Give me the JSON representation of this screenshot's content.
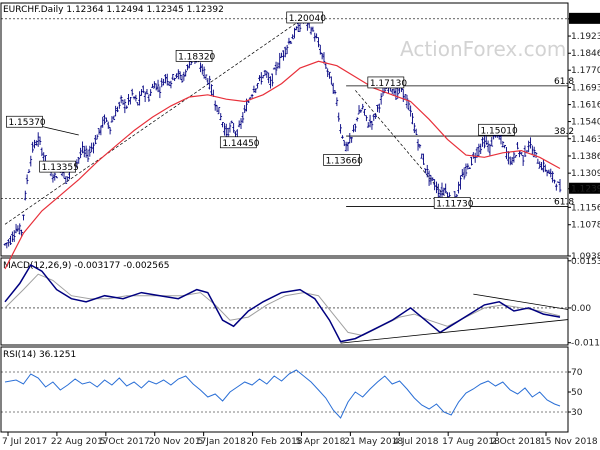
{
  "chart_data": [
    {
      "type": "candlestick",
      "header": "EURCHF.Daily  1.12364 1.12494 1.12345 1.12392",
      "watermark": "ActionForex.com",
      "y_ticks": [
        "1.20000",
        "1.19230",
        "1.18460",
        "1.17700",
        "1.16930",
        "1.16160",
        "1.15400",
        "1.14630",
        "1.13860",
        "1.13090",
        "1.12392",
        "1.11560",
        "1.10780",
        "1.09380"
      ],
      "ylim": [
        1.0938,
        1.2071
      ],
      "last_price": "1.12392",
      "x_ticks": [
        "7 Jul 2017",
        "22 Aug 2017",
        "5 Oct 2017",
        "20 Nov 2017",
        "5 Jan 2018",
        "20 Feb 2018",
        "5 Apr 2018",
        "21 May 2018",
        "4 Jul 2018",
        "17 Aug 2018",
        "2 Oct 2018",
        "15 Nov 2018"
      ],
      "price_path": [
        [
          0,
          1.099
        ],
        [
          3,
          1.101
        ],
        [
          6,
          1.106
        ],
        [
          9,
          1.105
        ],
        [
          12,
          1.128
        ],
        [
          15,
          1.142
        ],
        [
          18,
          1.146
        ],
        [
          21,
          1.139
        ],
        [
          24,
          1.133
        ],
        [
          27,
          1.129
        ],
        [
          30,
          1.134
        ],
        [
          33,
          1.128
        ],
        [
          36,
          1.132
        ],
        [
          39,
          1.136
        ],
        [
          42,
          1.141
        ],
        [
          45,
          1.139
        ],
        [
          48,
          1.144
        ],
        [
          51,
          1.149
        ],
        [
          54,
          1.155
        ],
        [
          57,
          1.152
        ],
        [
          60,
          1.158
        ],
        [
          63,
          1.163
        ],
        [
          66,
          1.161
        ],
        [
          69,
          1.166
        ],
        [
          72,
          1.162
        ],
        [
          75,
          1.168
        ],
        [
          78,
          1.165
        ],
        [
          81,
          1.171
        ],
        [
          84,
          1.169
        ],
        [
          87,
          1.174
        ],
        [
          90,
          1.172
        ],
        [
          93,
          1.176
        ],
        [
          96,
          1.173
        ],
        [
          99,
          1.178
        ],
        [
          102,
          1.183
        ],
        [
          105,
          1.18
        ],
        [
          108,
          1.176
        ],
        [
          111,
          1.171
        ],
        [
          114,
          1.163
        ],
        [
          117,
          1.156
        ],
        [
          120,
          1.149
        ],
        [
          123,
          1.152
        ],
        [
          126,
          1.148
        ],
        [
          129,
          1.156
        ],
        [
          132,
          1.163
        ],
        [
          135,
          1.169
        ],
        [
          138,
          1.172
        ],
        [
          141,
          1.176
        ],
        [
          144,
          1.171
        ],
        [
          147,
          1.178
        ],
        [
          150,
          1.183
        ],
        [
          153,
          1.188
        ],
        [
          156,
          1.192
        ],
        [
          159,
          1.196
        ],
        [
          162,
          1.2
        ],
        [
          165,
          1.197
        ],
        [
          168,
          1.193
        ],
        [
          171,
          1.186
        ],
        [
          174,
          1.179
        ],
        [
          177,
          1.172
        ],
        [
          180,
          1.163
        ],
        [
          182,
          1.151
        ],
        [
          185,
          1.142
        ],
        [
          188,
          1.146
        ],
        [
          191,
          1.156
        ],
        [
          194,
          1.16
        ],
        [
          197,
          1.153
        ],
        [
          200,
          1.155
        ],
        [
          203,
          1.162
        ],
        [
          206,
          1.168
        ],
        [
          209,
          1.171
        ],
        [
          212,
          1.166
        ],
        [
          215,
          1.169
        ],
        [
          218,
          1.163
        ],
        [
          221,
          1.155
        ],
        [
          224,
          1.145
        ],
        [
          227,
          1.136
        ],
        [
          230,
          1.129
        ],
        [
          233,
          1.126
        ],
        [
          236,
          1.122
        ],
        [
          239,
          1.124
        ],
        [
          242,
          1.118
        ],
        [
          245,
          1.122
        ],
        [
          248,
          1.129
        ],
        [
          251,
          1.133
        ],
        [
          254,
          1.138
        ],
        [
          257,
          1.142
        ],
        [
          260,
          1.145
        ],
        [
          263,
          1.142
        ],
        [
          266,
          1.149
        ],
        [
          269,
          1.146
        ],
        [
          272,
          1.14
        ],
        [
          275,
          1.136
        ],
        [
          278,
          1.142
        ],
        [
          281,
          1.138
        ],
        [
          284,
          1.144
        ],
        [
          287,
          1.14
        ],
        [
          290,
          1.135
        ],
        [
          293,
          1.133
        ],
        [
          296,
          1.13
        ],
        [
          299,
          1.127
        ],
        [
          301,
          1.124
        ]
      ],
      "ema_path": [
        [
          0,
          1.088
        ],
        [
          10,
          1.104
        ],
        [
          20,
          1.114
        ],
        [
          30,
          1.121
        ],
        [
          40,
          1.128
        ],
        [
          50,
          1.136
        ],
        [
          60,
          1.143
        ],
        [
          70,
          1.15
        ],
        [
          80,
          1.156
        ],
        [
          90,
          1.161
        ],
        [
          100,
          1.165
        ],
        [
          110,
          1.166
        ],
        [
          120,
          1.164
        ],
        [
          130,
          1.163
        ],
        [
          140,
          1.166
        ],
        [
          150,
          1.171
        ],
        [
          160,
          1.178
        ],
        [
          170,
          1.181
        ],
        [
          180,
          1.179
        ],
        [
          190,
          1.174
        ],
        [
          200,
          1.169
        ],
        [
          210,
          1.166
        ],
        [
          220,
          1.163
        ],
        [
          230,
          1.155
        ],
        [
          240,
          1.146
        ],
        [
          250,
          1.139
        ],
        [
          260,
          1.138
        ],
        [
          270,
          1.14
        ],
        [
          280,
          1.141
        ],
        [
          290,
          1.138
        ],
        [
          301,
          1.133
        ]
      ],
      "annotations": [
        {
          "label": "1.15370",
          "x": 10,
          "y": 1.1537
        },
        {
          "label": "1.13355",
          "x": 28,
          "y": 1.1336
        },
        {
          "label": "1.18320",
          "x": 102,
          "y": 1.1832
        },
        {
          "label": "1.14450",
          "x": 126,
          "y": 1.1445
        },
        {
          "label": "1.20040",
          "x": 162,
          "y": 1.2004
        },
        {
          "label": "1.17130",
          "x": 206,
          "y": 1.1713
        },
        {
          "label": "1.13660",
          "x": 182,
          "y": 1.1366
        },
        {
          "label": "1.15010",
          "x": 266,
          "y": 1.1501
        },
        {
          "label": "1.11730",
          "x": 242,
          "y": 1.1173
        }
      ],
      "hlines": [
        {
          "label": "61.8",
          "y": 1.17
        },
        {
          "label": "38.2",
          "y": 1.1475
        },
        {
          "label": "61.8",
          "y": 1.116
        }
      ]
    },
    {
      "type": "line",
      "title": "MACD(12,26,9) -0.003177 -0.002565",
      "y_ticks": [
        "0.015385",
        "0.00",
        "-0.011352"
      ],
      "ylim": [
        -0.0121,
        0.0163
      ],
      "macd": [
        [
          0,
          0.002
        ],
        [
          8,
          0.008
        ],
        [
          14,
          0.014
        ],
        [
          20,
          0.012
        ],
        [
          28,
          0.006
        ],
        [
          36,
          0.003
        ],
        [
          44,
          0.002
        ],
        [
          54,
          0.004
        ],
        [
          64,
          0.003
        ],
        [
          74,
          0.005
        ],
        [
          84,
          0.004
        ],
        [
          94,
          0.003
        ],
        [
          104,
          0.006
        ],
        [
          110,
          0.005
        ],
        [
          118,
          -0.004
        ],
        [
          124,
          -0.006
        ],
        [
          132,
          -0.001
        ],
        [
          140,
          0.002
        ],
        [
          150,
          0.005
        ],
        [
          160,
          0.006
        ],
        [
          168,
          0.003
        ],
        [
          176,
          -0.004
        ],
        [
          182,
          -0.011
        ],
        [
          190,
          -0.01
        ],
        [
          200,
          -0.007
        ],
        [
          210,
          -0.004
        ],
        [
          220,
          0.0
        ],
        [
          228,
          -0.004
        ],
        [
          236,
          -0.008
        ],
        [
          244,
          -0.005
        ],
        [
          252,
          -0.002
        ],
        [
          260,
          0.001
        ],
        [
          268,
          0.002
        ],
        [
          276,
          -0.001
        ],
        [
          284,
          0.0
        ],
        [
          292,
          -0.002
        ],
        [
          301,
          -0.003
        ]
      ],
      "signal": [
        [
          0,
          0.0
        ],
        [
          10,
          0.006
        ],
        [
          18,
          0.011
        ],
        [
          26,
          0.009
        ],
        [
          36,
          0.004
        ],
        [
          46,
          0.003
        ],
        [
          56,
          0.003
        ],
        [
          66,
          0.004
        ],
        [
          76,
          0.004
        ],
        [
          86,
          0.004
        ],
        [
          96,
          0.004
        ],
        [
          106,
          0.005
        ],
        [
          114,
          0.001
        ],
        [
          122,
          -0.004
        ],
        [
          132,
          -0.003
        ],
        [
          142,
          0.001
        ],
        [
          152,
          0.004
        ],
        [
          162,
          0.005
        ],
        [
          170,
          0.004
        ],
        [
          178,
          -0.002
        ],
        [
          186,
          -0.008
        ],
        [
          194,
          -0.009
        ],
        [
          204,
          -0.006
        ],
        [
          214,
          -0.003
        ],
        [
          222,
          -0.002
        ],
        [
          230,
          -0.004
        ],
        [
          240,
          -0.006
        ],
        [
          250,
          -0.003
        ],
        [
          260,
          0.0
        ],
        [
          270,
          0.001
        ],
        [
          280,
          0.0
        ],
        [
          290,
          -0.001
        ],
        [
          301,
          -0.0026
        ]
      ]
    },
    {
      "type": "line",
      "title": "RSI(14) 36.1251",
      "y_ticks": [
        "70",
        "50",
        "30"
      ],
      "ylim": [
        10,
        95
      ],
      "rsi": [
        [
          0,
          60
        ],
        [
          6,
          62
        ],
        [
          10,
          58
        ],
        [
          14,
          68
        ],
        [
          18,
          64
        ],
        [
          22,
          55
        ],
        [
          26,
          60
        ],
        [
          30,
          52
        ],
        [
          34,
          57
        ],
        [
          38,
          63
        ],
        [
          42,
          58
        ],
        [
          46,
          60
        ],
        [
          50,
          55
        ],
        [
          54,
          62
        ],
        [
          58,
          57
        ],
        [
          62,
          64
        ],
        [
          66,
          56
        ],
        [
          70,
          60
        ],
        [
          74,
          54
        ],
        [
          78,
          61
        ],
        [
          82,
          58
        ],
        [
          86,
          62
        ],
        [
          90,
          57
        ],
        [
          94,
          63
        ],
        [
          98,
          66
        ],
        [
          102,
          58
        ],
        [
          106,
          52
        ],
        [
          110,
          45
        ],
        [
          114,
          48
        ],
        [
          118,
          41
        ],
        [
          122,
          50
        ],
        [
          126,
          55
        ],
        [
          130,
          60
        ],
        [
          134,
          57
        ],
        [
          138,
          63
        ],
        [
          142,
          58
        ],
        [
          146,
          66
        ],
        [
          150,
          61
        ],
        [
          154,
          68
        ],
        [
          158,
          72
        ],
        [
          162,
          66
        ],
        [
          166,
          60
        ],
        [
          170,
          52
        ],
        [
          174,
          44
        ],
        [
          178,
          32
        ],
        [
          182,
          24
        ],
        [
          186,
          40
        ],
        [
          190,
          50
        ],
        [
          194,
          45
        ],
        [
          198,
          53
        ],
        [
          202,
          60
        ],
        [
          206,
          66
        ],
        [
          210,
          58
        ],
        [
          214,
          61
        ],
        [
          218,
          53
        ],
        [
          222,
          44
        ],
        [
          226,
          37
        ],
        [
          230,
          33
        ],
        [
          234,
          38
        ],
        [
          238,
          30
        ],
        [
          242,
          27
        ],
        [
          246,
          40
        ],
        [
          250,
          49
        ],
        [
          254,
          53
        ],
        [
          258,
          58
        ],
        [
          262,
          61
        ],
        [
          266,
          56
        ],
        [
          270,
          60
        ],
        [
          274,
          52
        ],
        [
          278,
          48
        ],
        [
          282,
          54
        ],
        [
          286,
          45
        ],
        [
          290,
          50
        ],
        [
          294,
          42
        ],
        [
          298,
          38
        ],
        [
          301,
          36
        ]
      ]
    }
  ]
}
